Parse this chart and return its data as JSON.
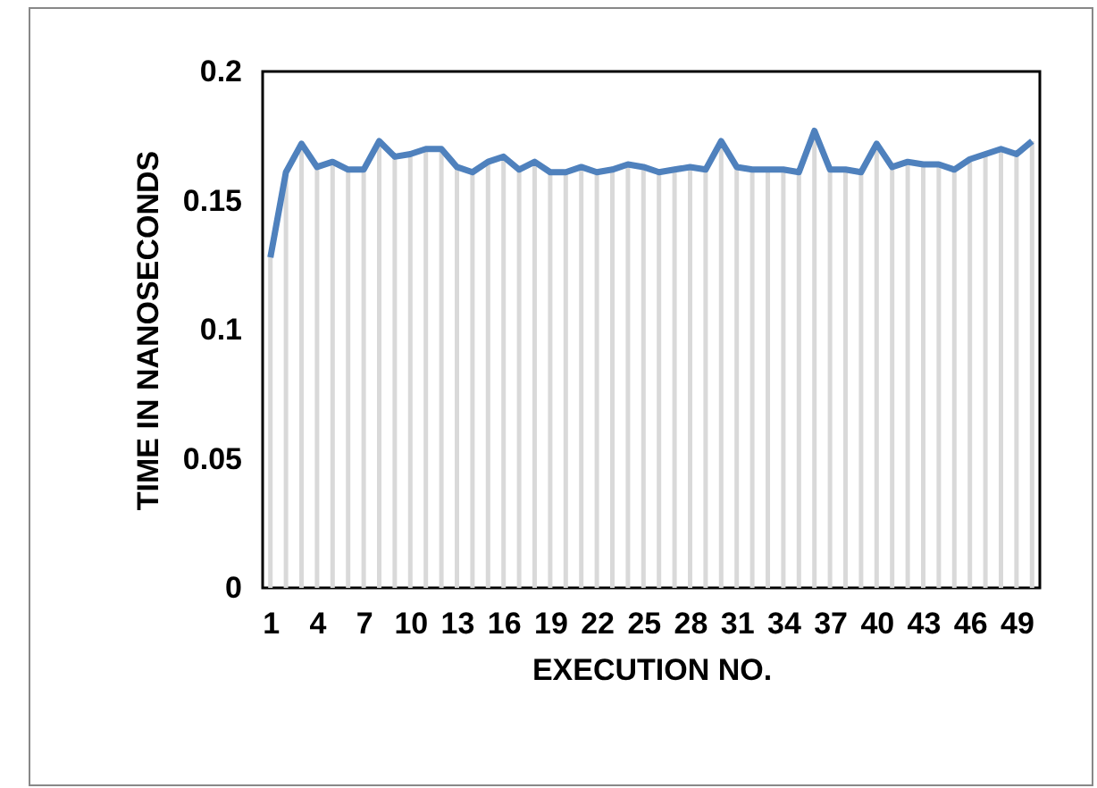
{
  "chart_data": {
    "type": "line",
    "xlabel": "EXECUTION NO.",
    "ylabel": "TIME IN NANOSECONDS",
    "categories": [
      "1",
      null,
      null,
      "4",
      null,
      null,
      "7",
      null,
      null,
      "10",
      null,
      null,
      "13",
      null,
      null,
      "16",
      null,
      null,
      "19",
      null,
      null,
      "22",
      null,
      null,
      "25",
      null,
      null,
      "28",
      null,
      null,
      "31",
      null,
      null,
      "34",
      null,
      null,
      "37",
      null,
      null,
      "40",
      null,
      null,
      "43",
      null,
      null,
      "46",
      null,
      null,
      "49",
      null
    ],
    "series": [
      {
        "color": "#4f81bd",
        "values": [
          0.128,
          0.161,
          0.172,
          0.163,
          0.165,
          0.162,
          0.162,
          0.173,
          0.167,
          0.168,
          0.17,
          0.17,
          0.163,
          0.161,
          0.165,
          0.167,
          0.162,
          0.165,
          0.161,
          0.161,
          0.163,
          0.161,
          0.162,
          0.164,
          0.163,
          0.161,
          0.162,
          0.163,
          0.162,
          0.173,
          0.163,
          0.162,
          0.162,
          0.162,
          0.161,
          0.177,
          0.162,
          0.162,
          0.161,
          0.172,
          0.163,
          0.165,
          0.164,
          0.164,
          0.162,
          0.166,
          0.168,
          0.17,
          0.168,
          0.173
        ]
      }
    ],
    "ylim": [
      0,
      0.2
    ],
    "yticks": [
      0,
      0.05,
      0.1,
      0.15,
      0.2
    ],
    "grid": "x",
    "marker": "none",
    "line_style": "solid"
  }
}
